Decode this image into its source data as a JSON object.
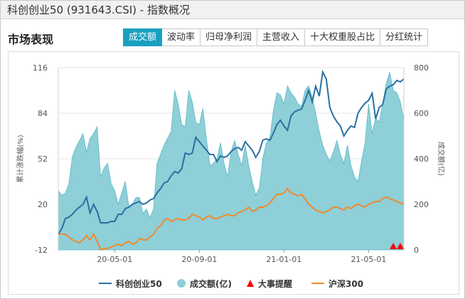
{
  "window": {
    "title": "科创创业50 (931643.CSI) - 指数概况"
  },
  "section": {
    "title": "市场表现"
  },
  "tabs": [
    {
      "label": "成交额",
      "active": true
    },
    {
      "label": "波动率",
      "active": false
    },
    {
      "label": "归母净利润",
      "active": false
    },
    {
      "label": "主营收入",
      "active": false
    },
    {
      "label": "十大权重股占比",
      "active": false
    },
    {
      "label": "分红统计",
      "active": false
    }
  ],
  "colors": {
    "index_line": "#2a6fa0",
    "volume_fill": "#8ecfd8",
    "volume_stroke": "#5ab9c7",
    "events": "#ff0000",
    "hs300_line": "#f08a2a",
    "accent": "#1aa0bf"
  },
  "chart_data": {
    "type": "line",
    "x_ticks": [
      "20-05-01",
      "20-09-01",
      "21-01-01",
      "21-05-01"
    ],
    "x_tick_index": [
      16,
      40,
      64,
      88
    ],
    "y_left": {
      "label": "累计涨跌幅(%)",
      "ticks": [
        "116",
        "84",
        "52",
        "20",
        "-12"
      ],
      "range": [
        -12,
        116
      ]
    },
    "y_right": {
      "label": "成交额(亿)",
      "ticks": [
        "800",
        "600",
        "400",
        "200",
        "0"
      ],
      "range": [
        0,
        800
      ]
    },
    "grid": "horizontal",
    "legend_position": "bottom",
    "series": [
      {
        "name": "科创创业50",
        "kind": "line",
        "axis": "left",
        "values": [
          -1,
          3,
          10,
          11,
          13,
          16,
          18,
          20,
          25,
          14,
          20,
          15,
          7,
          7,
          7,
          8,
          8,
          13,
          13,
          17,
          18,
          20,
          21,
          22,
          20,
          21,
          23,
          24,
          28,
          31,
          35,
          36,
          40,
          43,
          42,
          45,
          56,
          55,
          56,
          67,
          64,
          61,
          58,
          55,
          55,
          50,
          54,
          53,
          54,
          57,
          59,
          60,
          58,
          64,
          61,
          58,
          53,
          57,
          65,
          66,
          65,
          70,
          76,
          79,
          75,
          72,
          82,
          85,
          86,
          87,
          93,
          100,
          92,
          103,
          96,
          113,
          108,
          88,
          82,
          78,
          75,
          68,
          72,
          75,
          74,
          84,
          88,
          91,
          93,
          98,
          80,
          88,
          90,
          101,
          103,
          104,
          107,
          106,
          108
        ]
      },
      {
        "name": "成交额(亿)",
        "kind": "area",
        "axis": "right",
        "values": [
          260,
          240,
          250,
          290,
          410,
          450,
          480,
          510,
          430,
          490,
          510,
          540,
          320,
          360,
          380,
          290,
          260,
          200,
          250,
          300,
          190,
          200,
          230,
          230,
          160,
          180,
          140,
          180,
          380,
          420,
          460,
          490,
          520,
          700,
          640,
          550,
          540,
          700,
          650,
          560,
          550,
          620,
          490,
          370,
          380,
          400,
          470,
          380,
          320,
          430,
          480,
          420,
          370,
          460,
          370,
          300,
          240,
          270,
          400,
          470,
          490,
          610,
          690,
          680,
          640,
          720,
          690,
          670,
          640,
          630,
          700,
          720,
          670,
          600,
          520,
          460,
          420,
          390,
          430,
          480,
          420,
          380,
          460,
          370,
          320,
          300,
          390,
          470,
          640,
          510,
          580,
          560,
          640,
          730,
          780,
          700,
          690,
          650,
          570
        ]
      },
      {
        "name": "沪深300",
        "kind": "line",
        "axis": "left",
        "values": [
          -1,
          -1,
          -1,
          -3,
          -5,
          -6,
          -7,
          -5,
          -2,
          -5,
          -1,
          -6,
          -12,
          -11,
          -11,
          -10,
          -9,
          -8,
          -9,
          -7,
          -6,
          -8,
          -7,
          -4,
          -5,
          -5,
          -3,
          -1,
          3,
          5,
          9,
          10,
          8,
          9,
          10,
          9,
          9,
          10,
          13,
          12,
          11,
          9,
          11,
          12,
          10,
          10,
          11,
          12,
          13,
          12,
          12,
          14,
          15,
          16,
          18,
          15,
          16,
          18,
          18,
          19,
          21,
          24,
          27,
          27,
          28,
          31,
          28,
          27,
          26,
          27,
          24,
          20,
          18,
          16,
          15,
          14,
          15,
          16,
          18,
          18,
          17,
          16,
          18,
          17,
          19,
          20,
          19,
          18,
          20,
          21,
          22,
          22,
          24,
          25,
          24,
          23,
          22,
          21,
          20
        ]
      },
      {
        "name": "大事提醒",
        "kind": "marker",
        "index": [
          95,
          97
        ]
      }
    ]
  },
  "legend": [
    {
      "label": "科创创业50",
      "type": "line"
    },
    {
      "label": "成交额(亿)",
      "type": "dot"
    },
    {
      "label": "大事提醒",
      "type": "triangle"
    },
    {
      "label": "沪深300",
      "type": "line"
    }
  ]
}
